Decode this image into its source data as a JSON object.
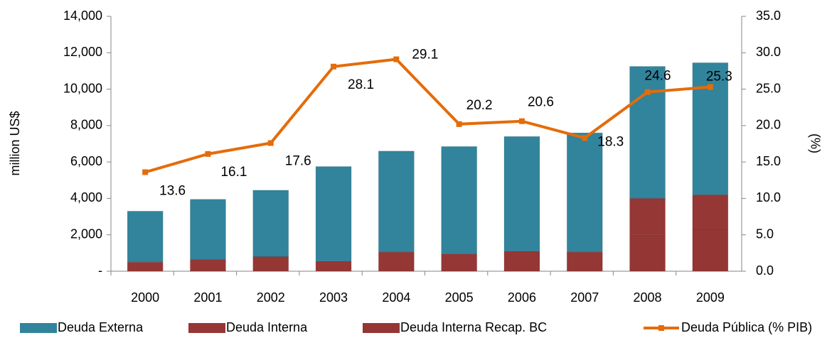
{
  "chart_data": {
    "type": "bar",
    "categories": [
      "2000",
      "2001",
      "2002",
      "2003",
      "2004",
      "2005",
      "2006",
      "2007",
      "2008",
      "2009"
    ],
    "series": [
      {
        "name": "Deuda Externa",
        "color": "#31849b",
        "values": [
          2800,
          3300,
          3650,
          5200,
          5550,
          5900,
          6300,
          6550,
          7250,
          7250
        ]
      },
      {
        "name": "Deuda Interna",
        "color": "#953735",
        "values": [
          500,
          650,
          800,
          550,
          1050,
          950,
          1100,
          1050,
          2000,
          1900
        ]
      },
      {
        "name": "Deuda Interna Recap. BC",
        "color": "#943634",
        "values": [
          0,
          0,
          0,
          0,
          0,
          0,
          0,
          0,
          2000,
          2300
        ]
      },
      {
        "name": "Deuda Pública (% PIB)",
        "type": "line",
        "axis": "y2",
        "color": "#e46c0a",
        "values": [
          13.6,
          16.1,
          17.6,
          28.1,
          29.1,
          20.2,
          20.6,
          18.3,
          24.6,
          25.3
        ]
      }
    ],
    "y_label": "million  US$",
    "y2_label": "(%)",
    "ylim": [
      0,
      14000
    ],
    "yticks": [
      {
        "value": 0,
        "label": "-"
      },
      {
        "value": 2000,
        "label": "2,000"
      },
      {
        "value": 4000,
        "label": "4,000"
      },
      {
        "value": 6000,
        "label": "6,000"
      },
      {
        "value": 8000,
        "label": "8,000"
      },
      {
        "value": 10000,
        "label": "10,000"
      },
      {
        "value": 12000,
        "label": "12,000"
      },
      {
        "value": 14000,
        "label": "14,000"
      }
    ],
    "y2lim": [
      0,
      35
    ],
    "y2ticks": [
      {
        "value": 0,
        "label": "0.0"
      },
      {
        "value": 5,
        "label": "5.0"
      },
      {
        "value": 10,
        "label": "10.0"
      },
      {
        "value": 15,
        "label": "15.0"
      },
      {
        "value": 20,
        "label": "20.0"
      },
      {
        "value": 25,
        "label": "25.0"
      },
      {
        "value": 30,
        "label": "30.0"
      },
      {
        "value": 35,
        "label": "35.0"
      }
    ]
  }
}
